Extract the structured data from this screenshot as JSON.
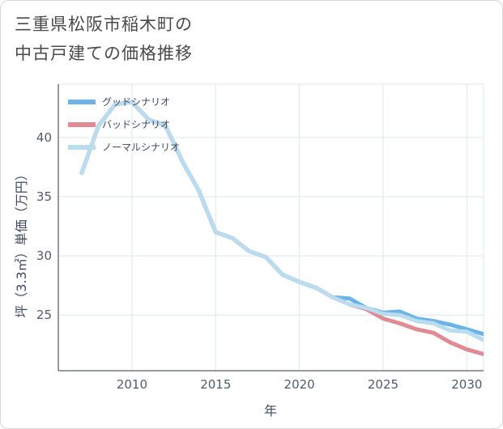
{
  "title": {
    "line1": "三重県松阪市稲木町の",
    "line2": "中古戸建ての価格推移"
  },
  "colors": {
    "good": "#6cb4e8",
    "bad": "#e08a93",
    "normal": "#b9dcee",
    "grid": "#dfe6ee",
    "axis": "#2f3a4a"
  },
  "chart_data": {
    "type": "line",
    "xlabel": "年",
    "ylabel": "坪（3.3㎡）単価（万円）",
    "xlim": [
      2005.6,
      2031
    ],
    "ylim": [
      20.3,
      44.5
    ],
    "x_ticks": [
      2010,
      2015,
      2020,
      2025,
      2030
    ],
    "y_ticks": [
      25,
      30,
      35,
      40
    ],
    "x_tick_labels": [
      "2010",
      "2015",
      "2020",
      "2025",
      "2030"
    ],
    "y_tick_labels": [
      "25",
      "30",
      "35",
      "40"
    ],
    "legend_position": "top-left",
    "series": [
      {
        "name": "グッドシナリオ",
        "color": "#6cb4e8",
        "points": [
          [
            2007,
            37
          ],
          [
            2008,
            41
          ],
          [
            2009,
            42.8
          ],
          [
            2010,
            43
          ],
          [
            2011,
            41.5
          ],
          [
            2012,
            41
          ],
          [
            2013,
            38
          ],
          [
            2014,
            35.5
          ],
          [
            2015,
            32
          ],
          [
            2016,
            31.5
          ],
          [
            2017,
            30.4
          ],
          [
            2018,
            29.9
          ],
          [
            2019,
            28.4
          ],
          [
            2020,
            27.8
          ],
          [
            2021,
            27.3
          ],
          [
            2022,
            26.5
          ],
          [
            2023,
            26.4
          ],
          [
            2024,
            25.6
          ],
          [
            2025,
            25.2
          ],
          [
            2026,
            25.3
          ],
          [
            2027,
            24.7
          ],
          [
            2028,
            24.5
          ],
          [
            2029,
            24.2
          ],
          [
            2030,
            23.8
          ],
          [
            2031,
            23.4
          ]
        ]
      },
      {
        "name": "バッドシナリオ",
        "color": "#e08a93",
        "points": [
          [
            2007,
            37
          ],
          [
            2008,
            41
          ],
          [
            2009,
            42.8
          ],
          [
            2010,
            43
          ],
          [
            2011,
            41.5
          ],
          [
            2012,
            41
          ],
          [
            2013,
            38
          ],
          [
            2014,
            35.5
          ],
          [
            2015,
            32
          ],
          [
            2016,
            31.5
          ],
          [
            2017,
            30.4
          ],
          [
            2018,
            29.9
          ],
          [
            2019,
            28.4
          ],
          [
            2020,
            27.8
          ],
          [
            2021,
            27.3
          ],
          [
            2022,
            26.5
          ],
          [
            2023,
            25.9
          ],
          [
            2024,
            25.5
          ],
          [
            2025,
            24.7
          ],
          [
            2026,
            24.3
          ],
          [
            2027,
            23.8
          ],
          [
            2028,
            23.5
          ],
          [
            2029,
            22.7
          ],
          [
            2030,
            22.1
          ],
          [
            2031,
            21.7
          ]
        ]
      },
      {
        "name": "ノーマルシナリオ",
        "color": "#b9dcee",
        "points": [
          [
            2007,
            37
          ],
          [
            2008,
            41
          ],
          [
            2009,
            42.8
          ],
          [
            2010,
            43
          ],
          [
            2011,
            41.5
          ],
          [
            2012,
            41
          ],
          [
            2013,
            38
          ],
          [
            2014,
            35.5
          ],
          [
            2015,
            32
          ],
          [
            2016,
            31.5
          ],
          [
            2017,
            30.4
          ],
          [
            2018,
            29.9
          ],
          [
            2019,
            28.4
          ],
          [
            2020,
            27.8
          ],
          [
            2021,
            27.3
          ],
          [
            2022,
            26.5
          ],
          [
            2023,
            25.9
          ],
          [
            2024,
            25.6
          ],
          [
            2025,
            25.1
          ],
          [
            2026,
            25
          ],
          [
            2027,
            24.5
          ],
          [
            2028,
            24.3
          ],
          [
            2029,
            23.7
          ],
          [
            2030,
            23.6
          ],
          [
            2031,
            22.9
          ]
        ]
      }
    ]
  }
}
